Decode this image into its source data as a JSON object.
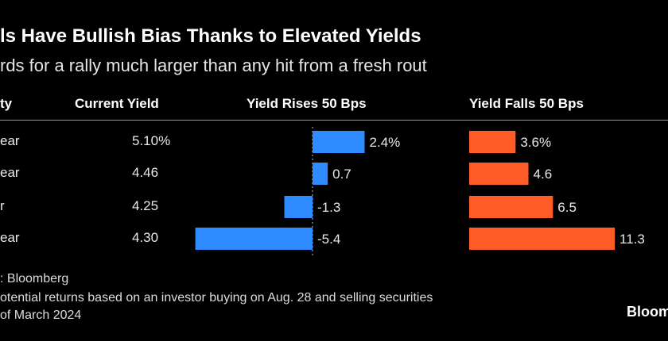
{
  "title": "ls Have Bullish Bias Thanks to Elevated Yields",
  "subtitle": "rds for a rally much larger than any hit from a fresh rout",
  "source": ": Bloomberg",
  "note_line1": "otential returns based on an investor buying on Aug. 28 and selling securities",
  "note_line2": "of March 2024",
  "brand": "Bloom",
  "colors": {
    "rises": "#2e8bff",
    "falls": "#ff5b27",
    "background": "#000000"
  },
  "chart_data": {
    "type": "table",
    "title": "ls Have Bullish Bias Thanks to Elevated Yields",
    "columns": [
      "ty",
      "Current Yield",
      "Yield Rises 50 Bps",
      "Yield Falls 50 Bps"
    ],
    "rows": [
      {
        "maturity": "ear",
        "current_yield": "5.10%",
        "rises": 2.4,
        "rises_label": "2.4%",
        "falls": 3.6,
        "falls_label": "3.6%"
      },
      {
        "maturity": "ear",
        "current_yield": "4.46",
        "rises": 0.7,
        "rises_label": "0.7",
        "falls": 4.6,
        "falls_label": "4.6"
      },
      {
        "maturity": "r",
        "current_yield": "4.25",
        "rises": -1.3,
        "rises_label": "-1.3",
        "falls": 6.5,
        "falls_label": "6.5"
      },
      {
        "maturity": "ear",
        "current_yield": "4.30",
        "rises": -5.4,
        "rises_label": "-5.4",
        "falls": 11.3,
        "falls_label": "11.3"
      }
    ]
  }
}
